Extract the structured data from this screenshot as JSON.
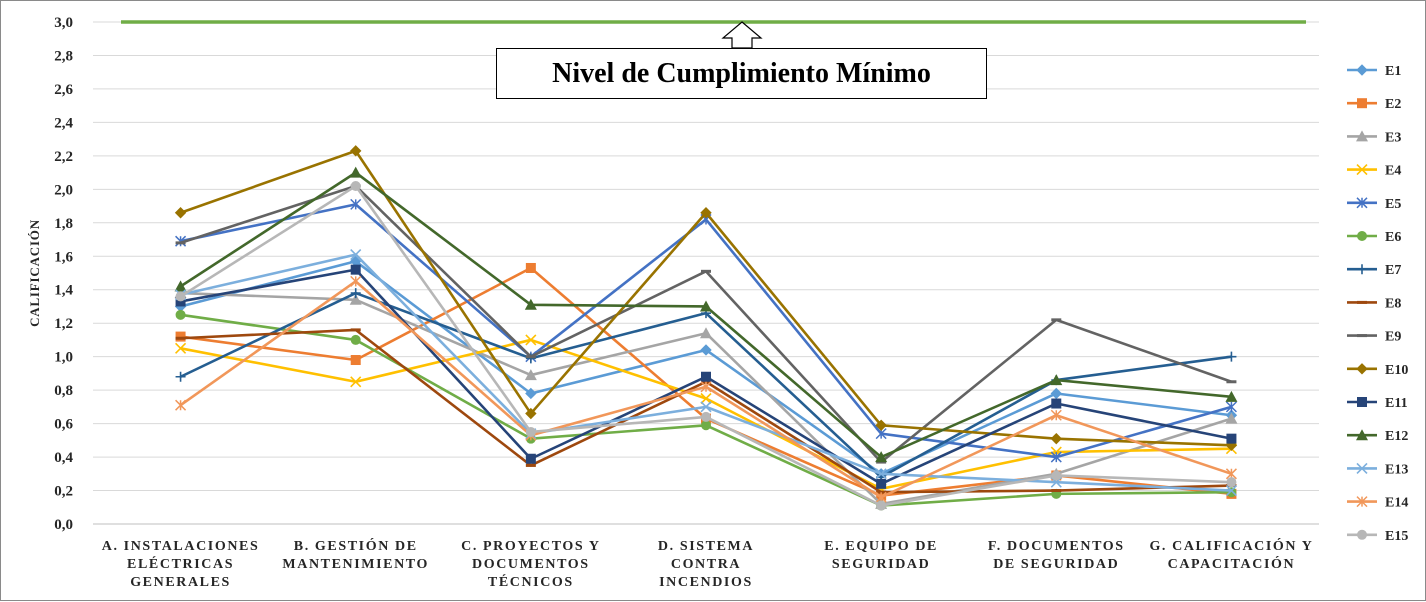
{
  "chart_data": {
    "type": "line",
    "ylabel": "CALIFICACIÓN",
    "ylim": [
      0,
      3
    ],
    "yticks": [
      "0,0",
      "0,2",
      "0,4",
      "0,6",
      "0,8",
      "1,0",
      "1,2",
      "1,4",
      "1,6",
      "1,8",
      "2,0",
      "2,2",
      "2,4",
      "2,6",
      "2,8",
      "3,0"
    ],
    "grid": true,
    "legend_position": "right",
    "categories": [
      [
        "A. INSTALACIONES",
        "ELÉCTRICAS",
        "GENERALES"
      ],
      [
        "B. GESTIÓN DE",
        "MANTENIMIENTO"
      ],
      [
        "C. PROYECTOS Y",
        "DOCUMENTOS",
        "TÉCNICOS"
      ],
      [
        "D. SISTEMA",
        "CONTRA",
        "INCENDIOS"
      ],
      [
        "E. EQUIPO DE",
        "SEGURIDAD"
      ],
      [
        "F. DOCUMENTOS",
        "DE SEGURIDAD"
      ],
      [
        "G. CALIFICACIÓN Y",
        "CAPACITACIÓN"
      ]
    ],
    "reference_line": {
      "value": 3.0,
      "color": "#70ad47"
    },
    "annotation": "Nivel de Cumplimiento Mínimo",
    "series": [
      {
        "name": "E1",
        "color": "#5b9bd5",
        "marker": "diamond",
        "values": [
          1.3,
          1.57,
          0.78,
          1.04,
          0.3,
          0.78,
          0.65
        ]
      },
      {
        "name": "E2",
        "color": "#ed7d31",
        "marker": "square",
        "values": [
          1.12,
          0.98,
          1.53,
          0.63,
          0.17,
          0.29,
          0.18
        ]
      },
      {
        "name": "E3",
        "color": "#a5a5a5",
        "marker": "triangle",
        "values": [
          1.38,
          1.34,
          0.89,
          1.14,
          0.12,
          0.3,
          0.63
        ]
      },
      {
        "name": "E4",
        "color": "#ffc000",
        "marker": "x",
        "values": [
          1.05,
          0.85,
          1.1,
          0.75,
          0.21,
          0.43,
          0.45
        ]
      },
      {
        "name": "E5",
        "color": "#4472c4",
        "marker": "star",
        "values": [
          1.69,
          1.91,
          1.0,
          1.82,
          0.54,
          0.4,
          0.7
        ]
      },
      {
        "name": "E6",
        "color": "#70ad47",
        "marker": "circle",
        "values": [
          1.25,
          1.1,
          0.51,
          0.59,
          0.11,
          0.18,
          0.19
        ]
      },
      {
        "name": "E7",
        "color": "#255e91",
        "marker": "plus",
        "values": [
          0.88,
          1.38,
          0.99,
          1.26,
          0.28,
          0.86,
          1.0
        ]
      },
      {
        "name": "E8",
        "color": "#9e480e",
        "marker": "dash",
        "values": [
          1.11,
          1.16,
          0.35,
          0.85,
          0.19,
          0.2,
          0.23
        ]
      },
      {
        "name": "E9",
        "color": "#636363",
        "marker": "dash",
        "values": [
          1.68,
          2.02,
          1.0,
          1.51,
          0.37,
          1.22,
          0.85
        ]
      },
      {
        "name": "E10",
        "color": "#997300",
        "marker": "diamond",
        "values": [
          1.86,
          2.23,
          0.66,
          1.86,
          0.59,
          0.51,
          0.47
        ]
      },
      {
        "name": "E11",
        "color": "#264478",
        "marker": "square",
        "values": [
          1.33,
          1.52,
          0.39,
          0.88,
          0.24,
          0.72,
          0.51
        ]
      },
      {
        "name": "E12",
        "color": "#43682b",
        "marker": "triangle",
        "values": [
          1.42,
          2.1,
          1.31,
          1.3,
          0.4,
          0.86,
          0.76
        ]
      },
      {
        "name": "E13",
        "color": "#7cafdd",
        "marker": "x",
        "values": [
          1.37,
          1.61,
          0.54,
          0.7,
          0.3,
          0.25,
          0.2
        ]
      },
      {
        "name": "E14",
        "color": "#f1975a",
        "marker": "star",
        "values": [
          0.71,
          1.45,
          0.53,
          0.82,
          0.16,
          0.65,
          0.3
        ]
      },
      {
        "name": "E15",
        "color": "#b7b7b7",
        "marker": "circle",
        "values": [
          1.36,
          2.02,
          0.55,
          0.64,
          0.11,
          0.29,
          0.25
        ]
      }
    ]
  }
}
